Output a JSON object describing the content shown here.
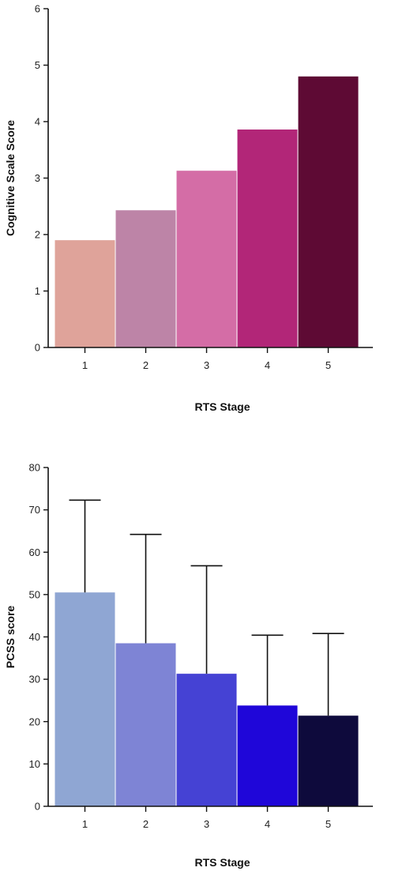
{
  "chart_data": [
    {
      "type": "bar",
      "categories": [
        "1",
        "2",
        "3",
        "4",
        "5"
      ],
      "values": [
        1.9,
        2.43,
        3.13,
        3.86,
        4.8
      ],
      "colors": [
        "#dfa39a",
        "#bd84a7",
        "#d46da6",
        "#b22678",
        "#5e0a34"
      ],
      "xlabel": "RTS Stage",
      "ylabel": "Cognitive Scale Score",
      "ylim": [
        0,
        6
      ],
      "yticks": [
        0,
        1,
        2,
        3,
        4,
        5,
        6
      ],
      "grid": false
    },
    {
      "type": "bar",
      "categories": [
        "1",
        "2",
        "3",
        "4",
        "5"
      ],
      "values": [
        50.5,
        38.5,
        31.3,
        23.8,
        21.4
      ],
      "error_upper": [
        72.3,
        64.2,
        56.8,
        40.4,
        40.8
      ],
      "colors": [
        "#8fa6d3",
        "#7e84d5",
        "#4542d4",
        "#1f06d9",
        "#0e0a3c"
      ],
      "xlabel": "RTS Stage",
      "ylabel": "PCSS score",
      "ylim": [
        0,
        80
      ],
      "yticks": [
        0,
        10,
        20,
        30,
        40,
        50,
        60,
        70,
        80
      ],
      "grid": false
    }
  ]
}
